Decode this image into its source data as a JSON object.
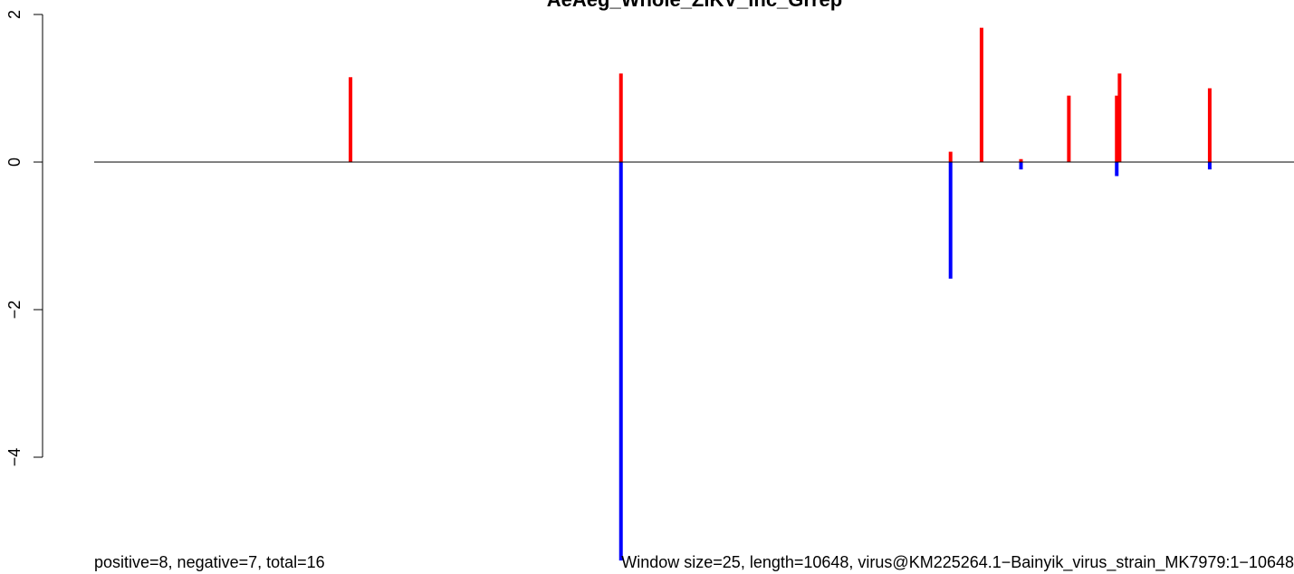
{
  "chart_data": {
    "type": "bar",
    "title": "AeAeg_Whole_ZIKV_inc_Grrep",
    "xlabel": "",
    "ylabel": "",
    "ylim": [
      -5.4,
      2.0
    ],
    "xlim": [
      0,
      10648
    ],
    "yticks": [
      2,
      0,
      -2,
      -4
    ],
    "ytick_labels": [
      "2",
      "0",
      "−2",
      "−4"
    ],
    "grid": false,
    "baseline": 0,
    "series": [
      {
        "color": "#ff0000",
        "points": [
          {
            "x": 2275,
            "y": 1.15
          },
          {
            "x": 4675,
            "y": 1.2
          },
          {
            "x": 7600,
            "y": 0.14
          },
          {
            "x": 7875,
            "y": 1.82
          },
          {
            "x": 8225,
            "y": 0.04
          },
          {
            "x": 8650,
            "y": 0.9
          },
          {
            "x": 9075,
            "y": 0.9
          },
          {
            "x": 9100,
            "y": 1.2
          },
          {
            "x": 9900,
            "y": 1.0
          }
        ]
      },
      {
        "color": "#0000ff",
        "points": [
          {
            "x": 4675,
            "y": -5.4
          },
          {
            "x": 7600,
            "y": -1.58
          },
          {
            "x": 8225,
            "y": -0.1
          },
          {
            "x": 9075,
            "y": -0.19
          },
          {
            "x": 9900,
            "y": -0.1
          }
        ]
      }
    ]
  },
  "footer": {
    "left": "positive=8, negative=7, total=16",
    "right": "Window size=25, length=10648, virus@KM225264.1−Bainyik_virus_strain_MK7979:1−10648"
  }
}
